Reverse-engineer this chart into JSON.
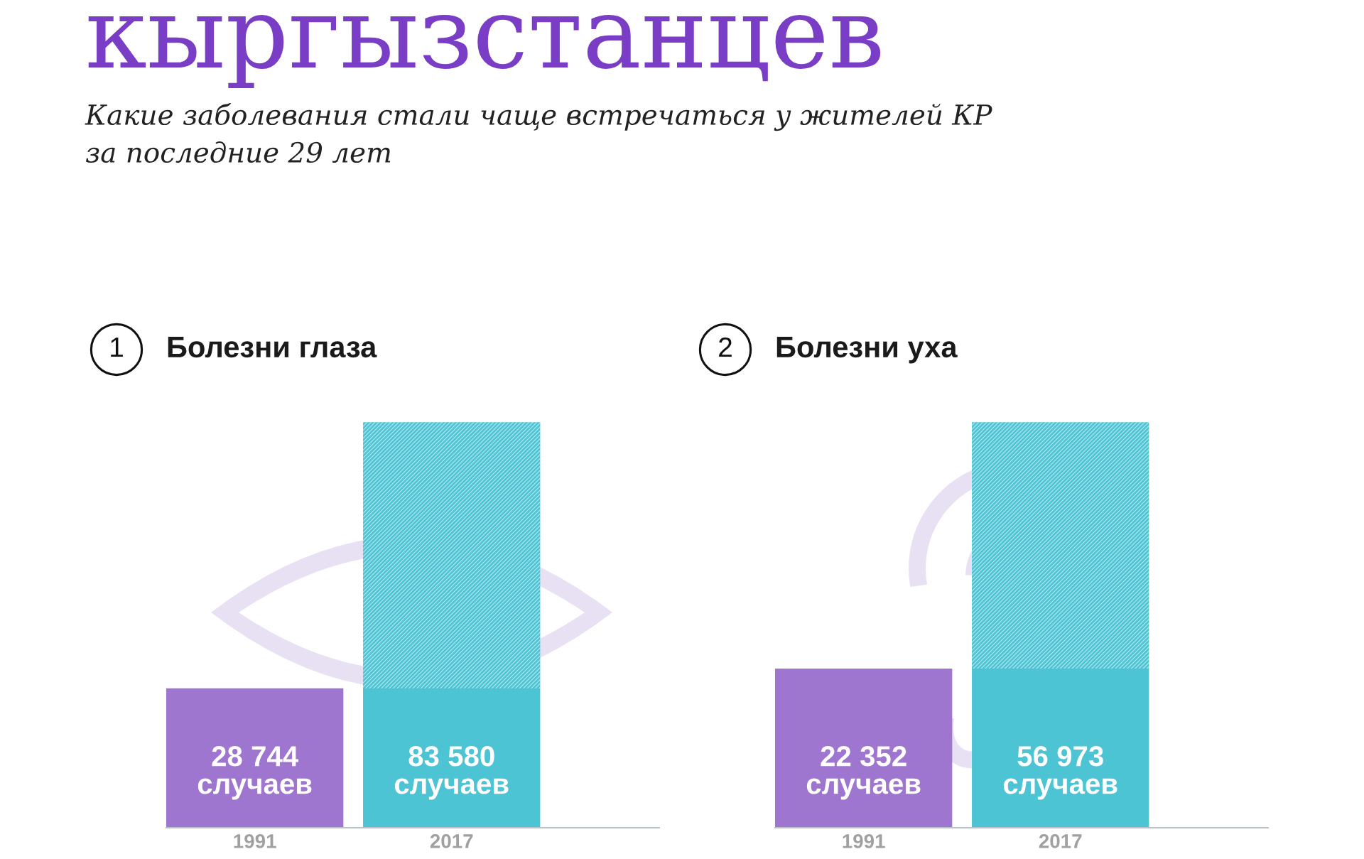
{
  "chart_data": [
    {
      "type": "other",
      "title": "кыргызстанцев",
      "subtitle": "Какие заболевания стали чаще встречаться у жителей КР\nза последние 29 лет"
    },
    {
      "type": "bar",
      "title": "Болезни глаза",
      "annotations": [
        "1"
      ],
      "categories": [
        "1991",
        "2017"
      ],
      "values": [
        28744,
        83580
      ],
      "colors": [
        "#9e76d0",
        "#4cc4d4"
      ],
      "value_labels": [
        "28 744\nслучаев",
        "83 580\nслучаев"
      ],
      "tick_labels": "x"
    },
    {
      "type": "bar",
      "title": "Болезни уха",
      "annotations": [
        "2"
      ],
      "categories": [
        "1991",
        "2017"
      ],
      "values": [
        22352,
        56973
      ],
      "colors": [
        "#9e76d0",
        "#4cc4d4"
      ],
      "value_labels": [
        "22 352\nслучаев",
        "56 973\nслучаев"
      ],
      "tick_labels": "x"
    }
  ]
}
